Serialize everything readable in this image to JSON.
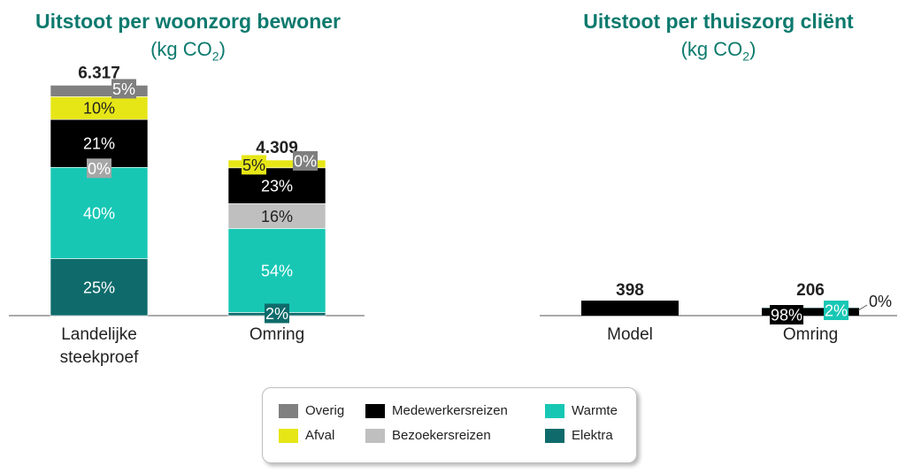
{
  "chart_data": [
    {
      "type": "bar",
      "title": "Uitstoot per woonzorg bewoner",
      "subtitle_prefix": "(kg CO",
      "subtitle_sub": "2",
      "subtitle_suffix": ")",
      "categories": [
        "Landelijke steekproef",
        "Omring"
      ],
      "totals": [
        "6.317",
        "4.309"
      ],
      "total_values": [
        6317,
        4309
      ],
      "segments": [
        {
          "name": "Elektra",
          "color": "#0f6b6b",
          "values": [
            25,
            2
          ],
          "labels": [
            "25%",
            "2%"
          ]
        },
        {
          "name": "Warmte",
          "color": "#17c7b4",
          "values": [
            40,
            54
          ],
          "labels": [
            "40%",
            "54%"
          ]
        },
        {
          "name": "Bezoekersreizen",
          "color": "#bfbfbf",
          "values": [
            0,
            16
          ],
          "labels": [
            "0%",
            "16%"
          ]
        },
        {
          "name": "Medewerkersreizen",
          "color": "#000000",
          "values": [
            21,
            23
          ],
          "labels": [
            "21%",
            "23%"
          ]
        },
        {
          "name": "Afval",
          "color": "#e6e617",
          "values": [
            10,
            5
          ],
          "labels": [
            "10%",
            "5%"
          ]
        },
        {
          "name": "Overig",
          "color": "#808080",
          "values": [
            5,
            0
          ],
          "labels": [
            "5%",
            "0%"
          ]
        }
      ]
    },
    {
      "type": "bar",
      "title": "Uitstoot per thuiszorg cliënt",
      "subtitle_prefix": "(kg CO",
      "subtitle_sub": "2",
      "subtitle_suffix": ")",
      "categories": [
        "Model",
        "Omring"
      ],
      "totals": [
        "398",
        "206"
      ],
      "total_values": [
        398,
        206
      ],
      "segments": [
        {
          "name": "Medewerkersreizen",
          "color": "#000000",
          "values": [
            100,
            98
          ],
          "labels": [
            "",
            "98%"
          ]
        },
        {
          "name": "Warmte",
          "color": "#17c7b4",
          "values": [
            0,
            2
          ],
          "labels": [
            "",
            "2%"
          ]
        },
        {
          "name": "Overig",
          "color": "#808080",
          "values": [
            0,
            0
          ],
          "labels": [
            "",
            "0%"
          ]
        }
      ]
    }
  ],
  "legend": [
    {
      "name": "Overig",
      "color": "#808080"
    },
    {
      "name": "Medewerkersreizen",
      "color": "#000000"
    },
    {
      "name": "Warmte",
      "color": "#17c7b4"
    },
    {
      "name": "Afval",
      "color": "#e6e617"
    },
    {
      "name": "Bezoekersreizen",
      "color": "#bfbfbf"
    },
    {
      "name": "Elektra",
      "color": "#0f6b6b"
    }
  ]
}
